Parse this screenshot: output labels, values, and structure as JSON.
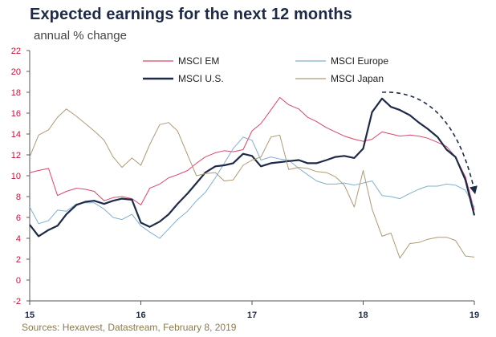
{
  "header": {
    "title": "Expected earnings for the next 12 months",
    "subtitle": "annual % change"
  },
  "footer": {
    "source": "Sources: Hexavest, Datastream, February 8, 2019"
  },
  "chart_data": {
    "type": "line",
    "title": "Expected earnings for the next 12 months",
    "subtitle": "annual % change",
    "xlabel": "",
    "ylabel": "",
    "xlim": [
      2015,
      2019
    ],
    "ylim": [
      -2,
      22
    ],
    "yticks": [
      -2,
      0,
      2,
      4,
      6,
      8,
      10,
      12,
      14,
      16,
      18,
      20,
      22
    ],
    "xticks": [
      {
        "value": 2015,
        "label": "15"
      },
      {
        "value": 2016,
        "label": "16"
      },
      {
        "value": 2017,
        "label": "17"
      },
      {
        "value": 2018,
        "label": "18"
      },
      {
        "value": 2019,
        "label": "19"
      }
    ],
    "grid": false,
    "legend_position": "top",
    "colors": {
      "MSCI EM": "#d9466a",
      "MSCI Europe": "#7fb0cf",
      "MSCI U.S.": "#1f2a48",
      "MSCI Japan": "#b09a74",
      "axis_labels": "#c0143c",
      "axis": "#555555"
    },
    "annotations": [
      {
        "type": "dashed-arrow",
        "from": [
          2018.17,
          18.0
        ],
        "to": [
          2019.0,
          8.6
        ],
        "color": "#1f2a48"
      }
    ],
    "series": [
      {
        "name": "MSCI EM",
        "x": [
          2015.0,
          2015.08,
          2015.17,
          2015.25,
          2015.33,
          2015.42,
          2015.5,
          2015.58,
          2015.67,
          2015.75,
          2015.83,
          2015.92,
          2016.0,
          2016.08,
          2016.17,
          2016.25,
          2016.33,
          2016.42,
          2016.5,
          2016.58,
          2016.67,
          2016.75,
          2016.83,
          2016.92,
          2017.0,
          2017.08,
          2017.17,
          2017.25,
          2017.33,
          2017.42,
          2017.5,
          2017.58,
          2017.67,
          2017.75,
          2017.83,
          2017.92,
          2018.0,
          2018.08,
          2018.17,
          2018.25,
          2018.33,
          2018.42,
          2018.5,
          2018.58,
          2018.67,
          2018.75,
          2018.83,
          2018.92,
          2019.0
        ],
        "values": [
          10.3,
          10.5,
          10.7,
          8.1,
          8.5,
          8.8,
          8.7,
          8.5,
          7.6,
          7.9,
          8.0,
          7.8,
          7.2,
          8.8,
          9.2,
          9.8,
          10.1,
          10.5,
          11.2,
          11.8,
          12.2,
          12.4,
          12.3,
          12.5,
          14.3,
          15.0,
          16.3,
          17.5,
          16.8,
          16.4,
          15.6,
          15.2,
          14.6,
          14.2,
          13.8,
          13.5,
          13.3,
          13.5,
          14.2,
          14.0,
          13.8,
          13.9,
          13.8,
          13.6,
          13.2,
          12.8,
          11.8,
          9.9,
          6.7
        ]
      },
      {
        "name": "MSCI Europe",
        "x": [
          2015.0,
          2015.08,
          2015.17,
          2015.25,
          2015.33,
          2015.42,
          2015.5,
          2015.58,
          2015.67,
          2015.75,
          2015.83,
          2015.92,
          2016.0,
          2016.08,
          2016.17,
          2016.25,
          2016.33,
          2016.42,
          2016.5,
          2016.58,
          2016.67,
          2016.75,
          2016.83,
          2016.92,
          2017.0,
          2017.08,
          2017.17,
          2017.25,
          2017.33,
          2017.42,
          2017.5,
          2017.58,
          2017.67,
          2017.75,
          2017.83,
          2017.92,
          2018.0,
          2018.08,
          2018.17,
          2018.25,
          2018.33,
          2018.42,
          2018.5,
          2018.58,
          2018.67,
          2018.75,
          2018.83,
          2018.92,
          2019.0
        ],
        "values": [
          7.0,
          5.4,
          5.7,
          6.7,
          6.6,
          7.3,
          7.4,
          7.4,
          6.8,
          6.0,
          5.8,
          6.3,
          5.2,
          4.6,
          4.0,
          4.9,
          5.8,
          6.6,
          7.6,
          8.4,
          9.8,
          11.2,
          12.6,
          13.7,
          13.4,
          11.5,
          11.8,
          11.6,
          11.5,
          10.7,
          10.1,
          9.5,
          9.2,
          9.2,
          9.3,
          9.1,
          9.3,
          9.5,
          8.1,
          8.0,
          7.8,
          8.3,
          8.7,
          9.0,
          9.0,
          9.2,
          9.1,
          8.6,
          7.0
        ]
      },
      {
        "name": "MSCI U.S.",
        "x": [
          2015.0,
          2015.08,
          2015.17,
          2015.25,
          2015.33,
          2015.42,
          2015.5,
          2015.58,
          2015.67,
          2015.75,
          2015.83,
          2015.92,
          2016.0,
          2016.08,
          2016.17,
          2016.25,
          2016.33,
          2016.42,
          2016.5,
          2016.58,
          2016.67,
          2016.75,
          2016.83,
          2016.92,
          2017.0,
          2017.08,
          2017.17,
          2017.25,
          2017.33,
          2017.42,
          2017.5,
          2017.58,
          2017.67,
          2017.75,
          2017.83,
          2017.92,
          2018.0,
          2018.08,
          2018.17,
          2018.25,
          2018.33,
          2018.42,
          2018.5,
          2018.58,
          2018.67,
          2018.75,
          2018.83,
          2018.92,
          2019.0
        ],
        "values": [
          5.3,
          4.2,
          4.8,
          5.2,
          6.3,
          7.2,
          7.5,
          7.6,
          7.3,
          7.6,
          7.8,
          7.7,
          5.5,
          5.1,
          5.6,
          6.3,
          7.3,
          8.3,
          9.3,
          10.3,
          10.9,
          11.0,
          11.2,
          12.1,
          11.9,
          10.9,
          11.2,
          11.3,
          11.4,
          11.5,
          11.2,
          11.2,
          11.5,
          11.8,
          11.9,
          11.7,
          12.6,
          16.1,
          17.4,
          16.6,
          16.3,
          15.8,
          15.1,
          14.5,
          13.7,
          12.5,
          11.8,
          9.6,
          6.2
        ]
      },
      {
        "name": "MSCI Japan",
        "x": [
          2015.0,
          2015.08,
          2015.17,
          2015.25,
          2015.33,
          2015.42,
          2015.5,
          2015.58,
          2015.67,
          2015.75,
          2015.83,
          2015.92,
          2016.0,
          2016.08,
          2016.17,
          2016.25,
          2016.33,
          2016.42,
          2016.5,
          2016.58,
          2016.67,
          2016.75,
          2016.83,
          2016.92,
          2017.0,
          2017.08,
          2017.17,
          2017.25,
          2017.33,
          2017.42,
          2017.5,
          2017.58,
          2017.67,
          2017.75,
          2017.83,
          2017.92,
          2018.0,
          2018.08,
          2018.17,
          2018.25,
          2018.33,
          2018.42,
          2018.5,
          2018.58,
          2018.67,
          2018.75,
          2018.83,
          2018.92,
          2019.0
        ],
        "values": [
          11.8,
          13.9,
          14.4,
          15.6,
          16.4,
          15.7,
          15.0,
          14.3,
          13.4,
          11.8,
          10.8,
          11.7,
          11.0,
          13.0,
          14.9,
          15.1,
          14.3,
          12.0,
          10.0,
          10.2,
          10.3,
          9.5,
          9.6,
          11.0,
          11.5,
          11.8,
          13.7,
          13.9,
          10.6,
          10.8,
          10.7,
          10.4,
          10.3,
          9.9,
          9.1,
          7.0,
          10.5,
          6.8,
          4.2,
          4.5,
          2.1,
          3.5,
          3.6,
          3.9,
          4.1,
          4.1,
          3.8,
          2.3,
          2.2
        ]
      }
    ]
  }
}
